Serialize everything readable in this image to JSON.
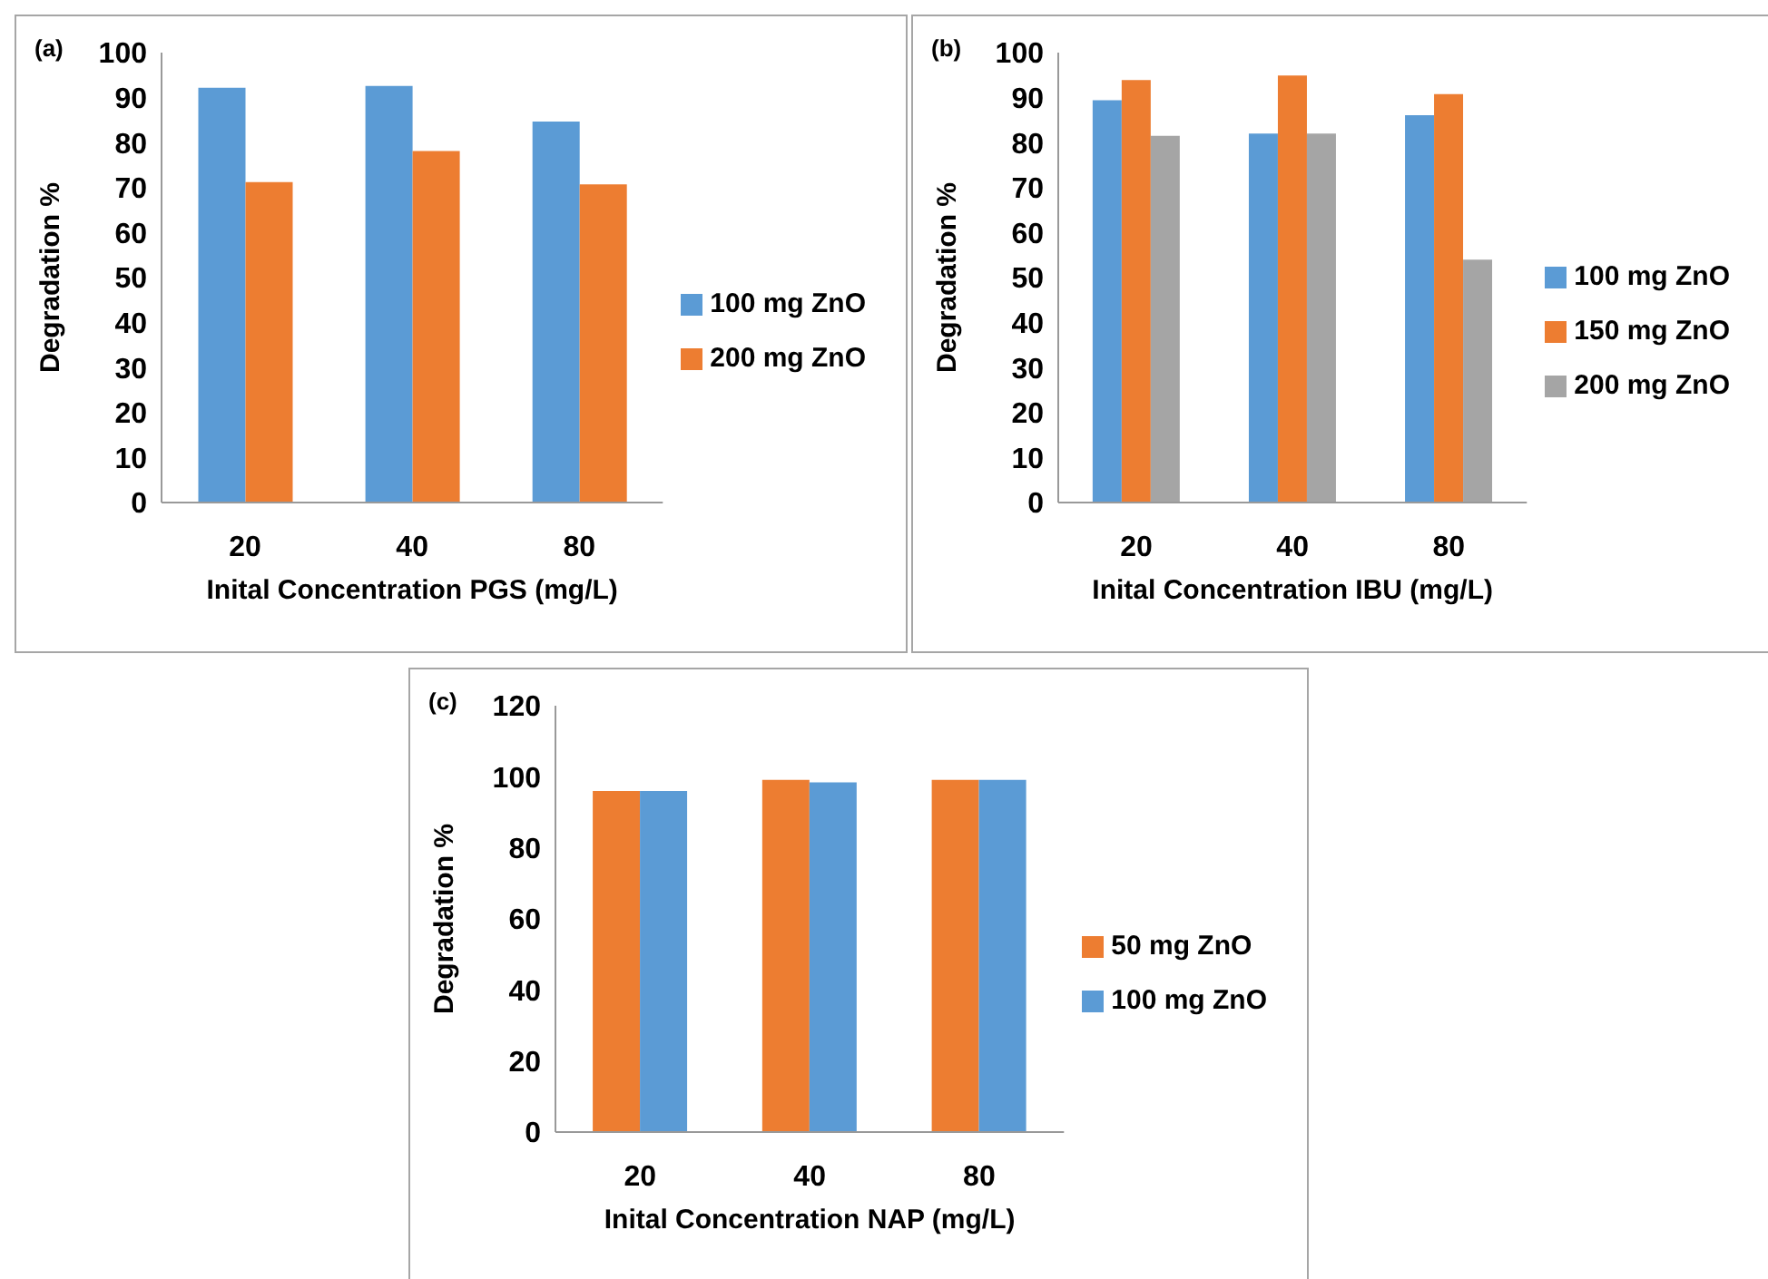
{
  "chart_data": [
    {
      "type": "bar",
      "annotations": [
        "(a)"
      ],
      "xlabel": "Inital Concentration PGS (mg/L)",
      "ylabel": "Degradation %",
      "categories": [
        "20",
        "40",
        "80"
      ],
      "series": [
        {
          "name": "100 mg ZnO",
          "color": "#5b9bd5",
          "values": [
            92.2,
            92.6,
            84.7
          ]
        },
        {
          "name": "200 mg ZnO",
          "color": "#ed7d31",
          "values": [
            71.2,
            78.1,
            70.7
          ]
        }
      ],
      "ylim": [
        0,
        100
      ],
      "yticks": [
        0,
        10,
        20,
        30,
        40,
        50,
        60,
        70,
        80,
        90,
        100
      ],
      "grid": false,
      "legend": "right"
    },
    {
      "type": "bar",
      "annotations": [
        "(b)"
      ],
      "xlabel": "Inital Concentration IBU (mg/L)",
      "ylabel": "Degradation %",
      "categories": [
        "20",
        "40",
        "80"
      ],
      "series": [
        {
          "name": "100 mg ZnO",
          "color": "#5b9bd5",
          "values": [
            89.4,
            82.0,
            86.1
          ]
        },
        {
          "name": "150 mg ZnO",
          "color": "#ed7d31",
          "values": [
            93.9,
            94.9,
            90.8
          ]
        },
        {
          "name": "200 mg ZnO",
          "color": "#a5a5a5",
          "values": [
            81.5,
            82.0,
            54.0
          ]
        }
      ],
      "ylim": [
        0,
        100
      ],
      "yticks": [
        0,
        10,
        20,
        30,
        40,
        50,
        60,
        70,
        80,
        90,
        100
      ],
      "grid": false,
      "legend": "right"
    },
    {
      "type": "bar",
      "annotations": [
        "(c)"
      ],
      "xlabel": "Inital Concentration NAP (mg/L)",
      "ylabel": "Degradation %",
      "categories": [
        "20",
        "40",
        "80"
      ],
      "series": [
        {
          "name": "50 mg ZnO",
          "color": "#ed7d31",
          "values": [
            96.0,
            99.1,
            99.1
          ]
        },
        {
          "name": "100 mg ZnO",
          "color": "#5b9bd5",
          "values": [
            96.0,
            98.4,
            99.1
          ]
        }
      ],
      "ylim": [
        0,
        120
      ],
      "yticks": [
        0,
        20,
        40,
        60,
        80,
        100,
        120
      ],
      "grid": false,
      "legend": "right"
    }
  ]
}
